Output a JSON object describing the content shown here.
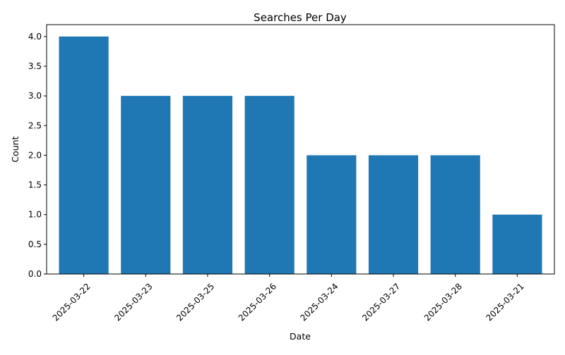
{
  "chart_data": {
    "type": "bar",
    "title": "Searches Per Day",
    "xlabel": "Date",
    "ylabel": "Count",
    "categories": [
      "2025-03-22",
      "2025-03-23",
      "2025-03-25",
      "2025-03-26",
      "2025-03-24",
      "2025-03-27",
      "2025-03-28",
      "2025-03-21"
    ],
    "values": [
      4,
      3,
      3,
      3,
      2,
      2,
      2,
      1
    ],
    "ylim": [
      0,
      4.2
    ],
    "yticks": [
      "0.0",
      "0.5",
      "1.0",
      "1.5",
      "2.0",
      "2.5",
      "3.0",
      "3.5",
      "4.0"
    ],
    "grid": false,
    "legend": "none",
    "bar_color": "#1f77b4"
  }
}
